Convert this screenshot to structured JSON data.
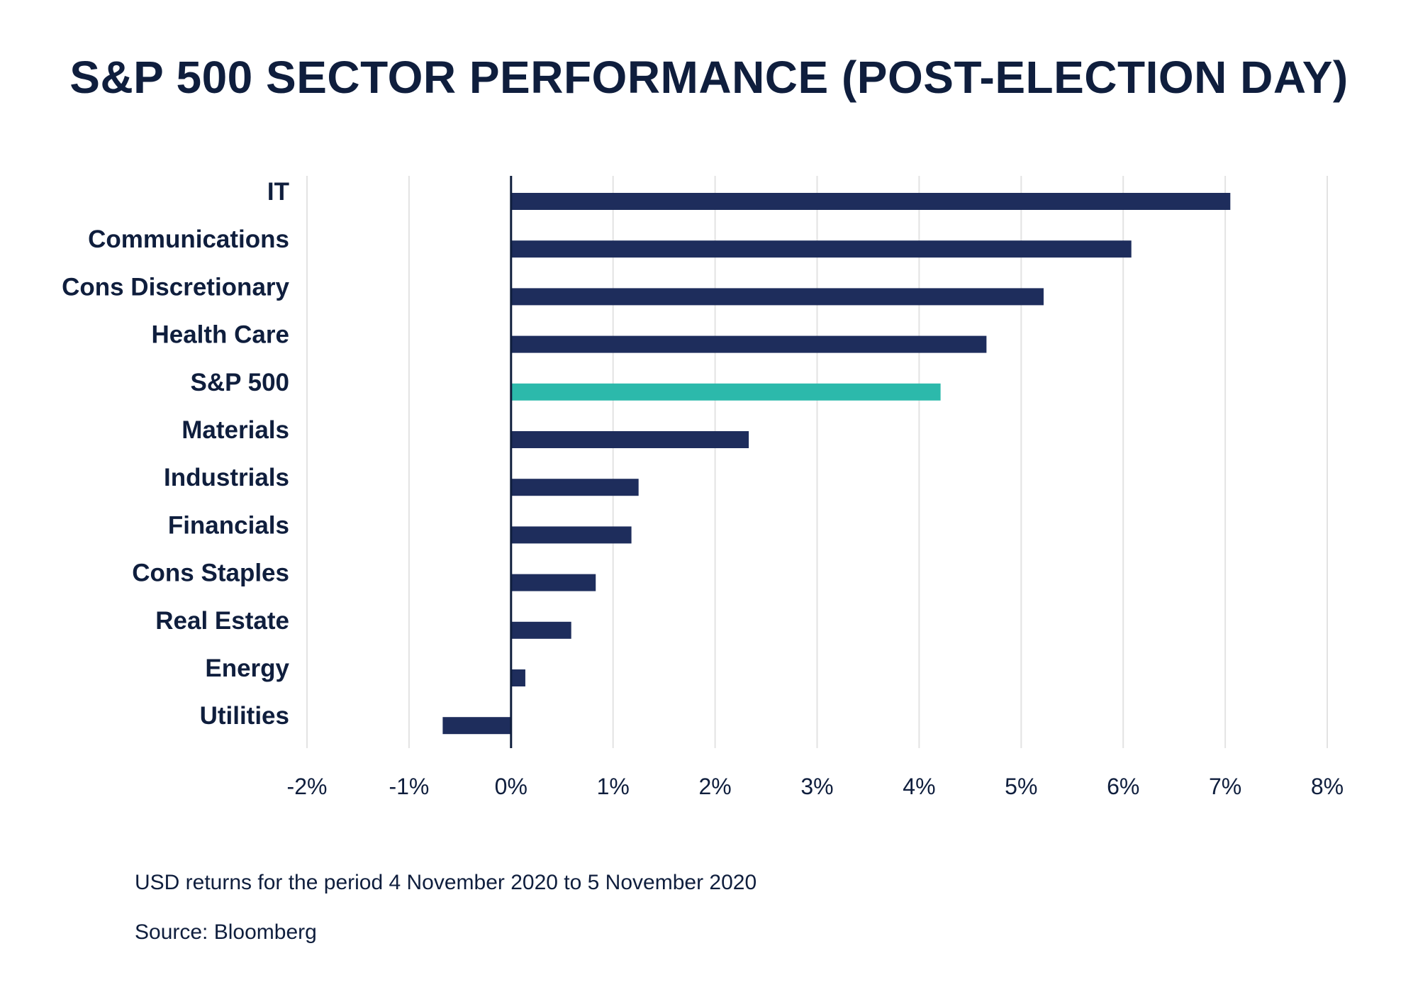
{
  "colors": {
    "bar": "#1e2d5c",
    "highlight": "#2cb9ab",
    "grid": "#e3e3e3",
    "axis": "#0f1e3d",
    "text": "#0f1e3d"
  },
  "chart_data": {
    "type": "bar",
    "orientation": "horizontal",
    "title": "S&P 500 SECTOR PERFORMANCE (POST-ELECTION DAY)",
    "categories": [
      "IT",
      "Communications",
      "Cons Discretionary",
      "Health Care",
      "S&P 500",
      "Materials",
      "Industrials",
      "Financials",
      "Cons Staples",
      "Real Estate",
      "Energy",
      "Utilities"
    ],
    "values": [
      7.05,
      6.08,
      5.22,
      4.66,
      4.21,
      2.33,
      1.25,
      1.18,
      0.83,
      0.59,
      0.14,
      -0.67
    ],
    "highlight_category": "S&P 500",
    "xlim": [
      -2,
      8
    ],
    "x_ticks": [
      -2,
      -1,
      0,
      1,
      2,
      3,
      4,
      5,
      6,
      7,
      8
    ],
    "x_tick_labels": [
      "-2%",
      "-1%",
      "0%",
      "1%",
      "2%",
      "3%",
      "4%",
      "5%",
      "6%",
      "7%",
      "8%"
    ],
    "grid": true,
    "legend": false
  },
  "notes": {
    "period": "USD returns for the period 4 November 2020 to 5 November 2020",
    "source": "Source: Bloomberg"
  }
}
